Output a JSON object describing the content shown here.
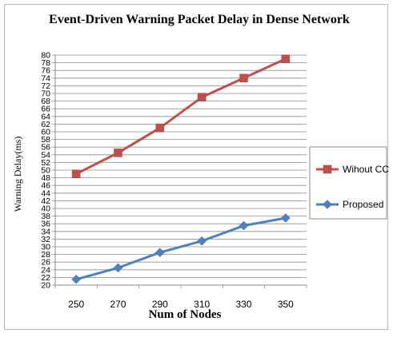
{
  "chart_data": {
    "type": "line",
    "title": "Event-Driven Warning Packet Delay in Dense Network",
    "xlabel": "Num of Nodes",
    "ylabel": "Warning Delay(ms)",
    "x": [
      250,
      270,
      290,
      310,
      330,
      350
    ],
    "ylim": [
      20,
      80
    ],
    "yticks": [
      20,
      22,
      24,
      26,
      28,
      30,
      32,
      34,
      36,
      38,
      40,
      42,
      44,
      46,
      48,
      50,
      52,
      54,
      56,
      58,
      60,
      62,
      64,
      66,
      68,
      70,
      72,
      74,
      76,
      78,
      80
    ],
    "grid": true,
    "legend_position": "right",
    "series": [
      {
        "name": "Wihout CC",
        "values": [
          49,
          54.5,
          61,
          69,
          74,
          79
        ],
        "color": "#c0504d",
        "marker": "square"
      },
      {
        "name": "Proposed",
        "values": [
          21.5,
          24.5,
          28.5,
          31.5,
          35.5,
          37.5
        ],
        "color": "#4f81bd",
        "marker": "diamond"
      }
    ]
  }
}
